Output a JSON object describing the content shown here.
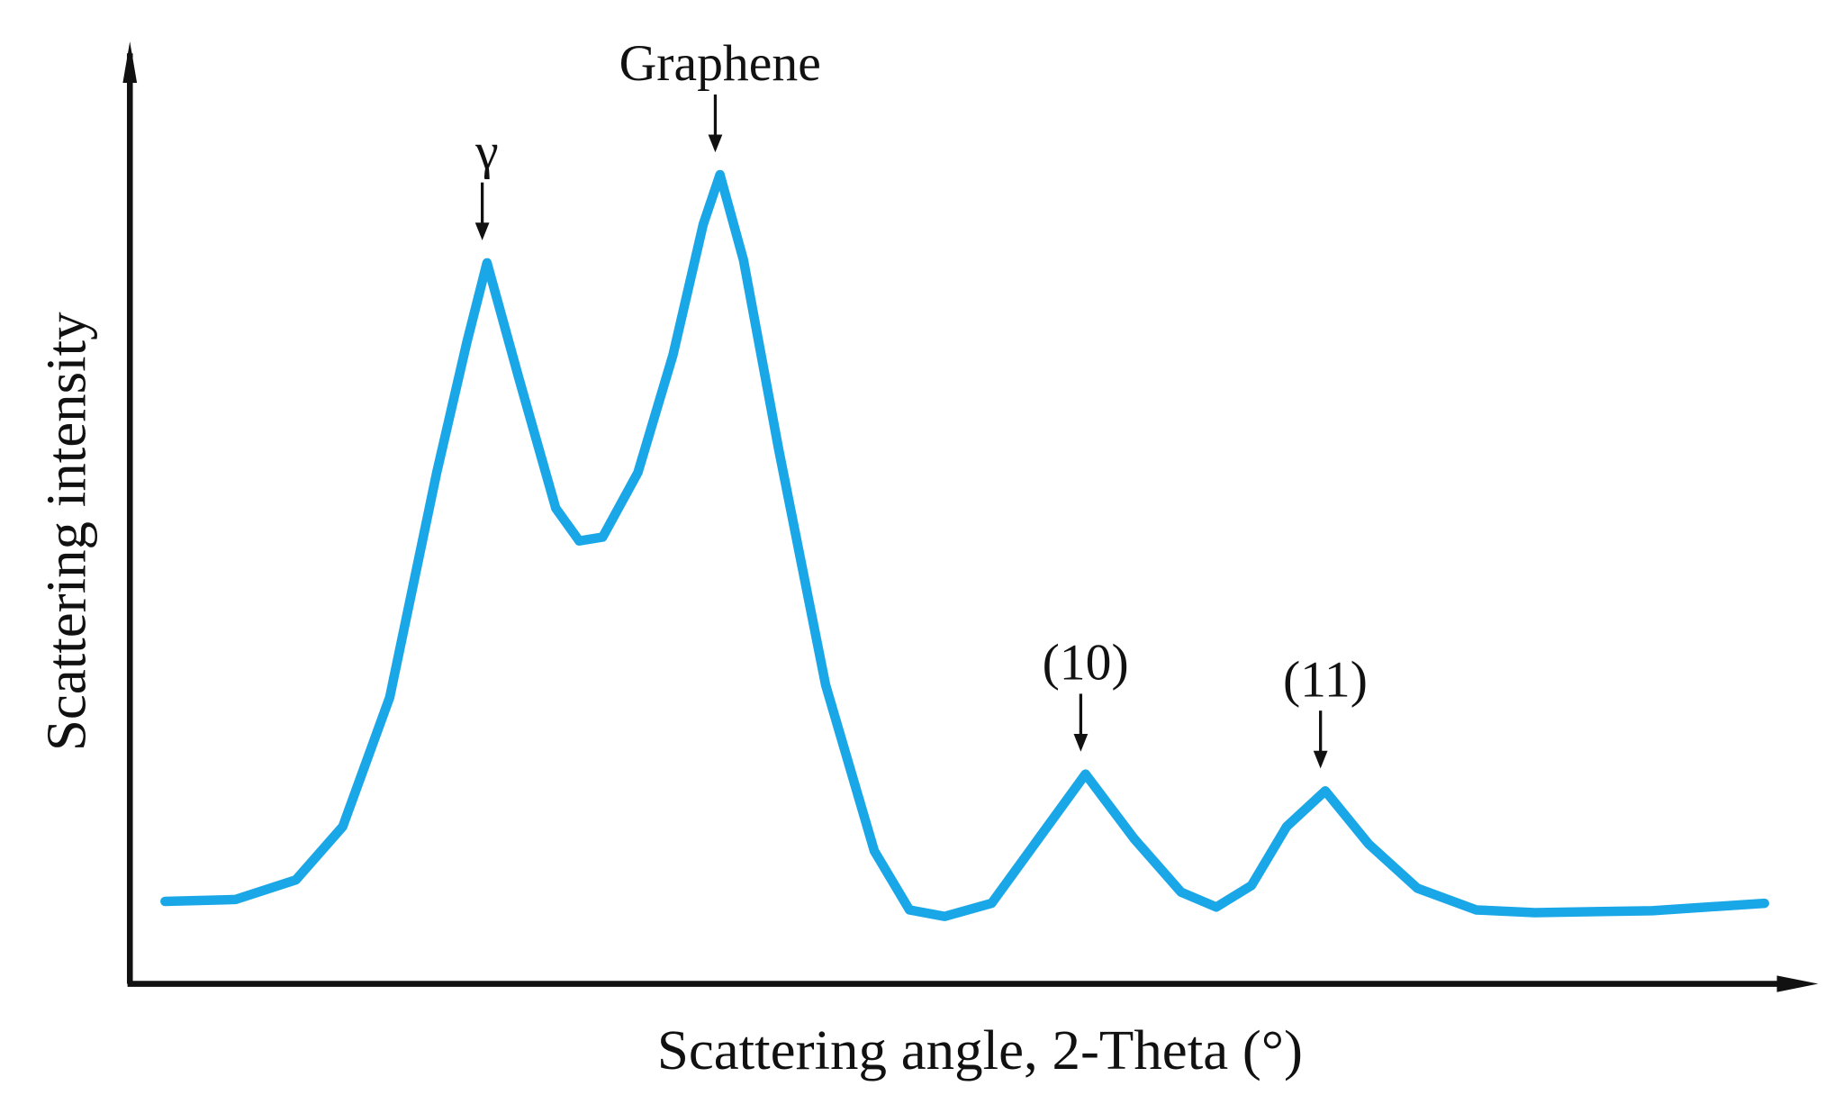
{
  "chart_data": {
    "type": "line",
    "x_label": "Scattering angle, 2-Theta (°)",
    "y_label": "Scattering intensity",
    "x": [
      2.1,
      6.3,
      9.9,
      12.7,
      15.5,
      18.3,
      20.1,
      21.3,
      23.2,
      25.4,
      26.8,
      28.2,
      30.3,
      32.4,
      34.2,
      35.2,
      36.6,
      38.7,
      41.5,
      44.4,
      46.5,
      48.6,
      51.4,
      54.2,
      57.0,
      59.9,
      62.7,
      64.8,
      66.9,
      69.0,
      71.3,
      73.9,
      76.8,
      80.3,
      83.8,
      90.8,
      97.5
    ],
    "values": [
      8.8,
      9.0,
      11.1,
      16.8,
      30.6,
      54.6,
      68.5,
      77.0,
      64.7,
      50.8,
      47.3,
      47.7,
      54.6,
      67.2,
      81.1,
      86.4,
      77.3,
      57.1,
      31.9,
      14.2,
      7.9,
      7.2,
      8.6,
      15.5,
      22.4,
      15.5,
      9.8,
      8.2,
      10.5,
      16.8,
      20.6,
      14.9,
      10.2,
      7.9,
      7.6,
      7.8,
      8.6
    ],
    "color": "#1aa7e8",
    "xlim": [
      0,
      100
    ],
    "ylim": [
      0,
      100
    ],
    "annotations": [
      {
        "text": "γ"
      },
      {
        "text": "Graphene"
      },
      {
        "text": "(10)"
      },
      {
        "text": "(11)"
      }
    ]
  }
}
